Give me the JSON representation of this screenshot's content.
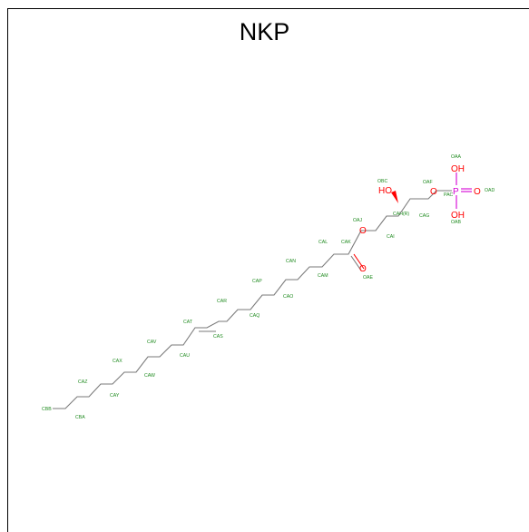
{
  "title": "NKP",
  "atom_labels": {
    "OAA": "OAA",
    "OAD": "OAD",
    "OAB": "OAB",
    "PAC": "PAC",
    "OAF": "OAF",
    "OBC": "OBC",
    "CAH": "CAH(R)",
    "CAG": "CAG",
    "OAJ": "OAJ",
    "CAI": "CAI",
    "CAK": "CAK",
    "OAE": "OAE",
    "CAL": "CAL",
    "CAM": "CAM",
    "CAN": "CAN",
    "CAO": "CAO",
    "CAP": "CAP",
    "CAQ": "CAQ",
    "CAR": "CAR",
    "CAS": "CAS",
    "CAT": "CAT",
    "CAU": "CAU",
    "CAV": "CAV",
    "CAW": "CAW",
    "CAX": "CAX",
    "CAY": "CAY",
    "CAZ": "CAZ",
    "CBA": "CBA",
    "CBB": "CBB"
  },
  "elements": {
    "OH_top": "OH",
    "OH_bottom": "OH",
    "O_double": "O",
    "P": "P",
    "O_ester_phos": "O",
    "HO": "HO",
    "O_ester": "O",
    "O_carbonyl": "O"
  },
  "colors": {
    "oxygen": "#ff0000",
    "phosphorus": "#d400d4",
    "atom_label": "#1e8a1e",
    "bond": "#7a7a7a"
  }
}
